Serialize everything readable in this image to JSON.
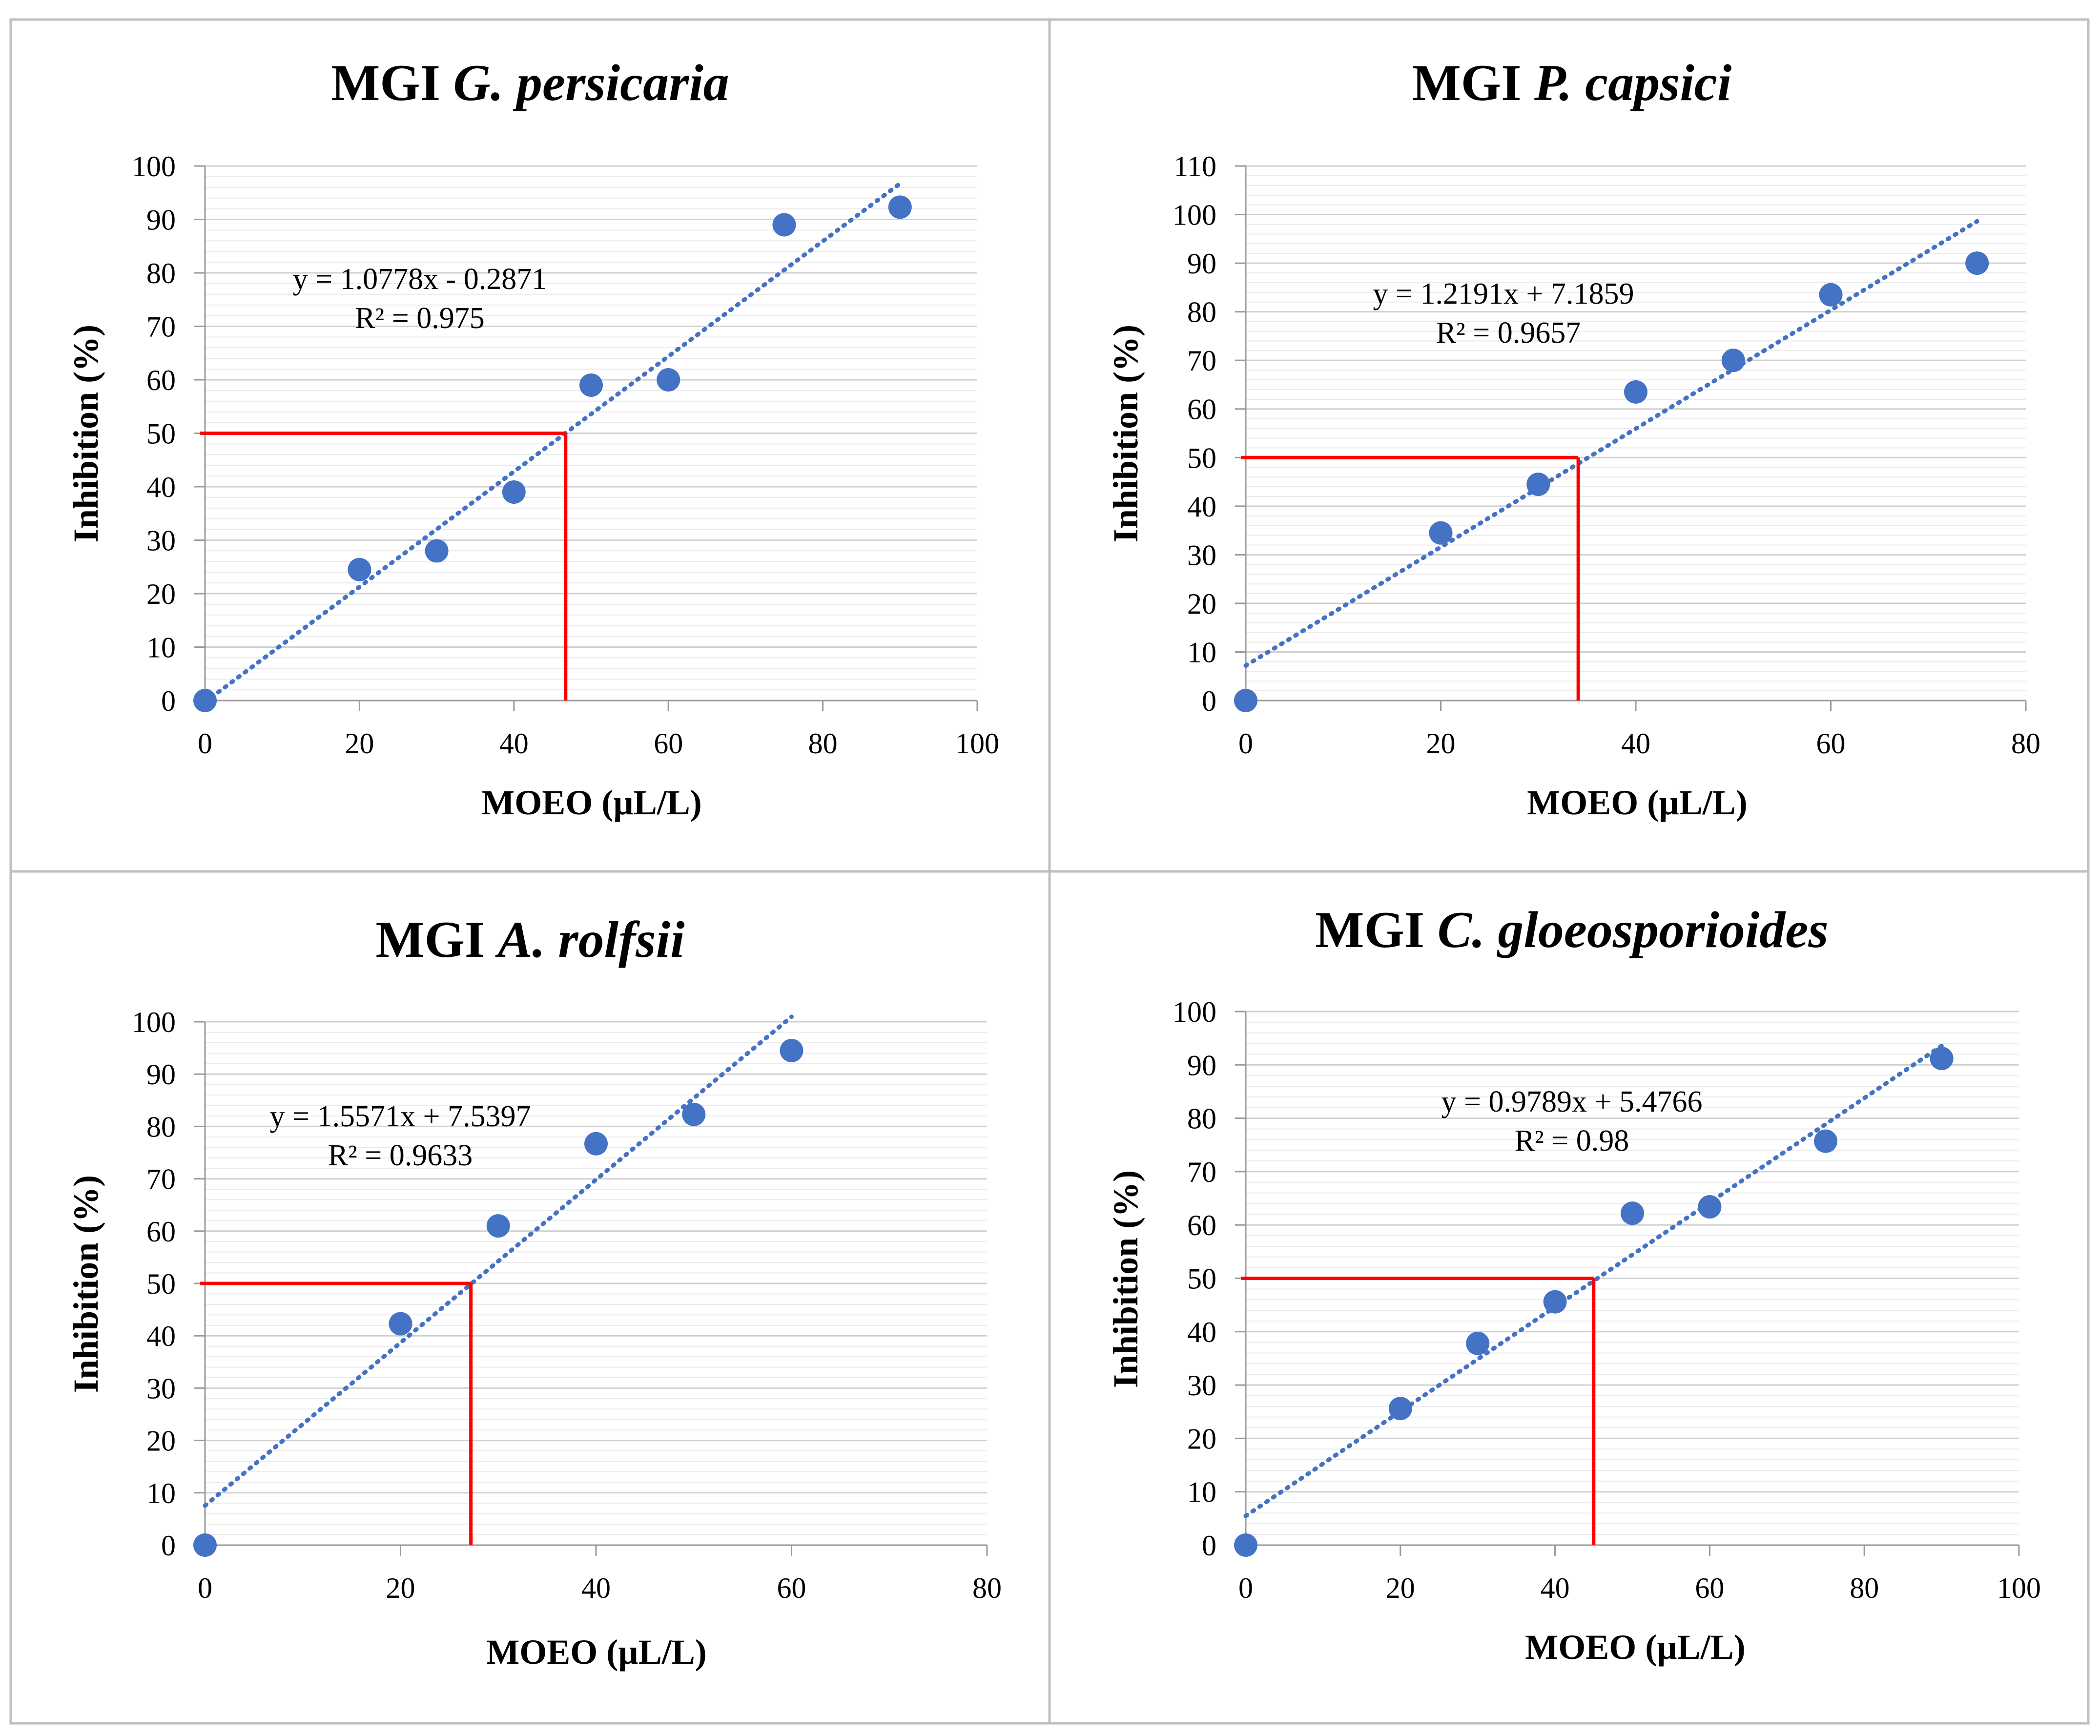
{
  "colors": {
    "series": "#4472c4",
    "reference": "#ff0000",
    "border": "#bfbfbf"
  },
  "chart_data": [
    {
      "type": "scatter",
      "title_prefix": "MGI",
      "title_species": "G. persicaria",
      "xlabel": "MOEO (µL/L)",
      "ylabel": "Inhibition (%)",
      "xlim": [
        0,
        100
      ],
      "x_step": 20,
      "ylim": [
        0,
        100
      ],
      "y_step": 10,
      "x": [
        0,
        20,
        30,
        40,
        50,
        60,
        75,
        90
      ],
      "y": [
        0,
        24.5,
        28,
        39,
        59,
        60,
        89,
        92.3
      ],
      "trendline": {
        "slope": 1.0778,
        "intercept": -0.2871,
        "x_start": 0,
        "x_end": 90
      },
      "equation": "y = 1.0778x - 0.2871",
      "r_squared": "R² = 0.975",
      "reference": {
        "x": 46.7,
        "y": 50
      },
      "x_ticks": [
        "0",
        "20",
        "40",
        "60",
        "80",
        "100"
      ],
      "y_ticks": [
        "0",
        "10",
        "20",
        "30",
        "40",
        "50",
        "60",
        "70",
        "80",
        "90",
        "100"
      ]
    },
    {
      "type": "scatter",
      "title_prefix": "MGI",
      "title_species": "P. capsici",
      "xlabel": "MOEO (µL/L)",
      "ylabel": "Inhibition (%)",
      "xlim": [
        0,
        80
      ],
      "x_step": 20,
      "ylim": [
        0,
        110
      ],
      "y_step": 10,
      "x": [
        0,
        20,
        30,
        40,
        50,
        60,
        75
      ],
      "y": [
        0,
        34.5,
        44.5,
        63.5,
        70,
        83.5,
        90
      ],
      "trendline": {
        "slope": 1.2191,
        "intercept": 7.1859,
        "x_start": 0,
        "x_end": 75
      },
      "equation": "y = 1.2191x + 7.1859",
      "r_squared": "R² = 0.9657",
      "reference": {
        "x": 34.1,
        "y": 50
      },
      "x_ticks": [
        "0",
        "20",
        "40",
        "60",
        "80"
      ],
      "y_ticks": [
        "0",
        "10",
        "20",
        "30",
        "40",
        "50",
        "60",
        "70",
        "80",
        "90",
        "100",
        "110"
      ]
    },
    {
      "type": "scatter",
      "title_prefix": "MGI",
      "title_species": "A. rolfsii",
      "xlabel": "MOEO (µL/L)",
      "ylabel": "Inhibition (%)",
      "xlim": [
        0,
        80
      ],
      "x_step": 20,
      "ylim": [
        0,
        100
      ],
      "y_step": 10,
      "x": [
        0,
        20,
        30,
        40,
        50,
        60
      ],
      "y": [
        0,
        42.3,
        61,
        76.7,
        82.3,
        94.5
      ],
      "trendline": {
        "slope": 1.5571,
        "intercept": 7.5397,
        "x_start": 0,
        "x_end": 60
      },
      "equation": "y = 1.5571x + 7.5397",
      "r_squared": "R² = 0.9633",
      "reference": {
        "x": 27.2,
        "y": 50
      },
      "x_ticks": [
        "0",
        "20",
        "40",
        "60",
        "80"
      ],
      "y_ticks": [
        "0",
        "10",
        "20",
        "30",
        "40",
        "50",
        "60",
        "70",
        "80",
        "90",
        "100"
      ]
    },
    {
      "type": "scatter",
      "title_prefix": "MGI",
      "title_species": "C. gloeosporioides",
      "xlabel": "MOEO (µL/L)",
      "ylabel": "Inhibition (%)",
      "xlim": [
        0,
        100
      ],
      "x_step": 20,
      "ylim": [
        0,
        100
      ],
      "y_step": 10,
      "x": [
        0,
        20,
        30,
        40,
        50,
        60,
        75,
        90
      ],
      "y": [
        0,
        25.6,
        37.8,
        45.6,
        62.2,
        63.4,
        75.7,
        91.2
      ],
      "trendline": {
        "slope": 0.9789,
        "intercept": 5.4766,
        "x_start": 0,
        "x_end": 90
      },
      "equation": "y = 0.9789x + 5.4766",
      "r_squared": "R² = 0.98",
      "reference": {
        "x": 45,
        "y": 50
      },
      "x_ticks": [
        "0",
        "20",
        "40",
        "60",
        "80",
        "100"
      ],
      "y_ticks": [
        "0",
        "10",
        "20",
        "30",
        "40",
        "50",
        "60",
        "70",
        "80",
        "90",
        "100"
      ]
    }
  ]
}
